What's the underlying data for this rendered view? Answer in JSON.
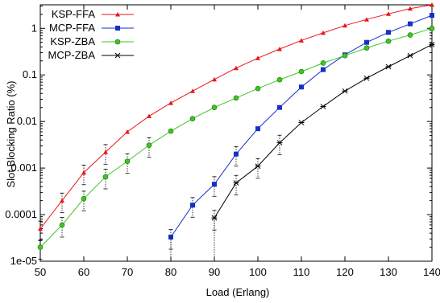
{
  "chart_data": {
    "type": "line",
    "title": "",
    "xlabel": "Load (Erlang)",
    "ylabel": "Slot Blocking Ratio (%)",
    "xlim": [
      50,
      140
    ],
    "ylim": [
      1e-05,
      3.2
    ],
    "y_scale": "log",
    "x_ticks": [
      50,
      60,
      70,
      80,
      90,
      100,
      110,
      120,
      130,
      140
    ],
    "y_ticks": [
      {
        "value": 1e-05,
        "label": "1e-05"
      },
      {
        "value": 0.0001,
        "label": "0.0001"
      },
      {
        "value": 0.001,
        "label": "0.001"
      },
      {
        "value": 0.01,
        "label": "0.01"
      },
      {
        "value": 0.1,
        "label": "0.1"
      },
      {
        "value": 1,
        "label": "1"
      }
    ],
    "grid": false,
    "legend_position": "top-left",
    "series": [
      {
        "name": "KSP-FFA",
        "color": "#e8161b",
        "marker": "triangle",
        "x": [
          50,
          55,
          60,
          65,
          70,
          75,
          80,
          85,
          90,
          95,
          100,
          105,
          110,
          115,
          120,
          125,
          130,
          135,
          140
        ],
        "y": [
          5e-05,
          0.0002,
          0.0008,
          0.0022,
          0.006,
          0.013,
          0.025,
          0.045,
          0.08,
          0.14,
          0.23,
          0.36,
          0.55,
          0.8,
          1.15,
          1.55,
          2.05,
          2.65,
          3.2
        ]
      },
      {
        "name": "MCP-FFA",
        "color": "#1530c8",
        "marker": "square",
        "x": [
          80,
          85,
          90,
          95,
          100,
          105,
          110,
          115,
          120,
          125,
          130,
          135,
          140
        ],
        "y": [
          3.3e-05,
          0.00016,
          0.00045,
          0.002,
          0.007,
          0.02,
          0.055,
          0.13,
          0.27,
          0.5,
          0.82,
          1.25,
          1.9
        ]
      },
      {
        "name": "KSP-ZBA",
        "color": "#3cc81e",
        "marker": "circle",
        "x": [
          50,
          55,
          60,
          65,
          70,
          75,
          80,
          85,
          90,
          95,
          100,
          105,
          110,
          115,
          120,
          125,
          130,
          135,
          140
        ],
        "y": [
          2e-05,
          6e-05,
          0.00022,
          0.00065,
          0.0014,
          0.0031,
          0.0062,
          0.0115,
          0.02,
          0.032,
          0.051,
          0.079,
          0.118,
          0.18,
          0.26,
          0.38,
          0.53,
          0.72,
          1.0
        ]
      },
      {
        "name": "MCP-ZBA",
        "color": "#000000",
        "marker": "star",
        "x": [
          90,
          95,
          100,
          105,
          110,
          115,
          120,
          125,
          130,
          135,
          140
        ],
        "y": [
          8.5e-05,
          0.00048,
          0.0011,
          0.0035,
          0.0095,
          0.021,
          0.045,
          0.085,
          0.15,
          0.26,
          0.45
        ]
      }
    ]
  }
}
